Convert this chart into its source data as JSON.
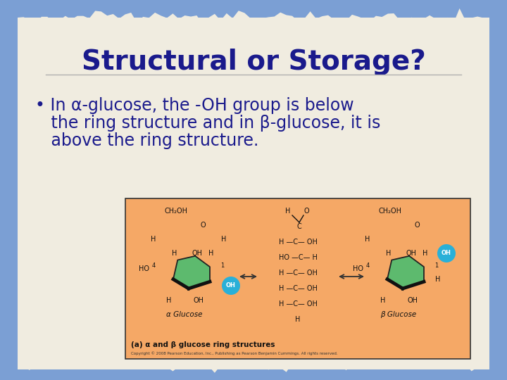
{
  "title": "Structural or Storage?",
  "title_color": "#1a1a8c",
  "title_fontsize": 28,
  "bullet_color": "#1a1a8c",
  "bullet_fontsize": 17,
  "bg_outer": "#7b9fd4",
  "bg_paper": "#f0ece0",
  "image_box_color": "#f5a866",
  "image_box_border": "#333333",
  "green_ring": "#5dba6e",
  "blue_circle": "#29b0d8",
  "dark_text": "#111111",
  "caption_text": "(a) α and β glucose ring structures",
  "copyright_text": "Copyright © 2008 Pearson Education, Inc., Publishing as Pearson Benjamin Cummings. All rights reserved.",
  "bullet_line1": "• In α-glucose, the -OH group is below",
  "bullet_line2": "   the ring structure and in β-glucose, it is",
  "bullet_line3": "   above the ring structure."
}
